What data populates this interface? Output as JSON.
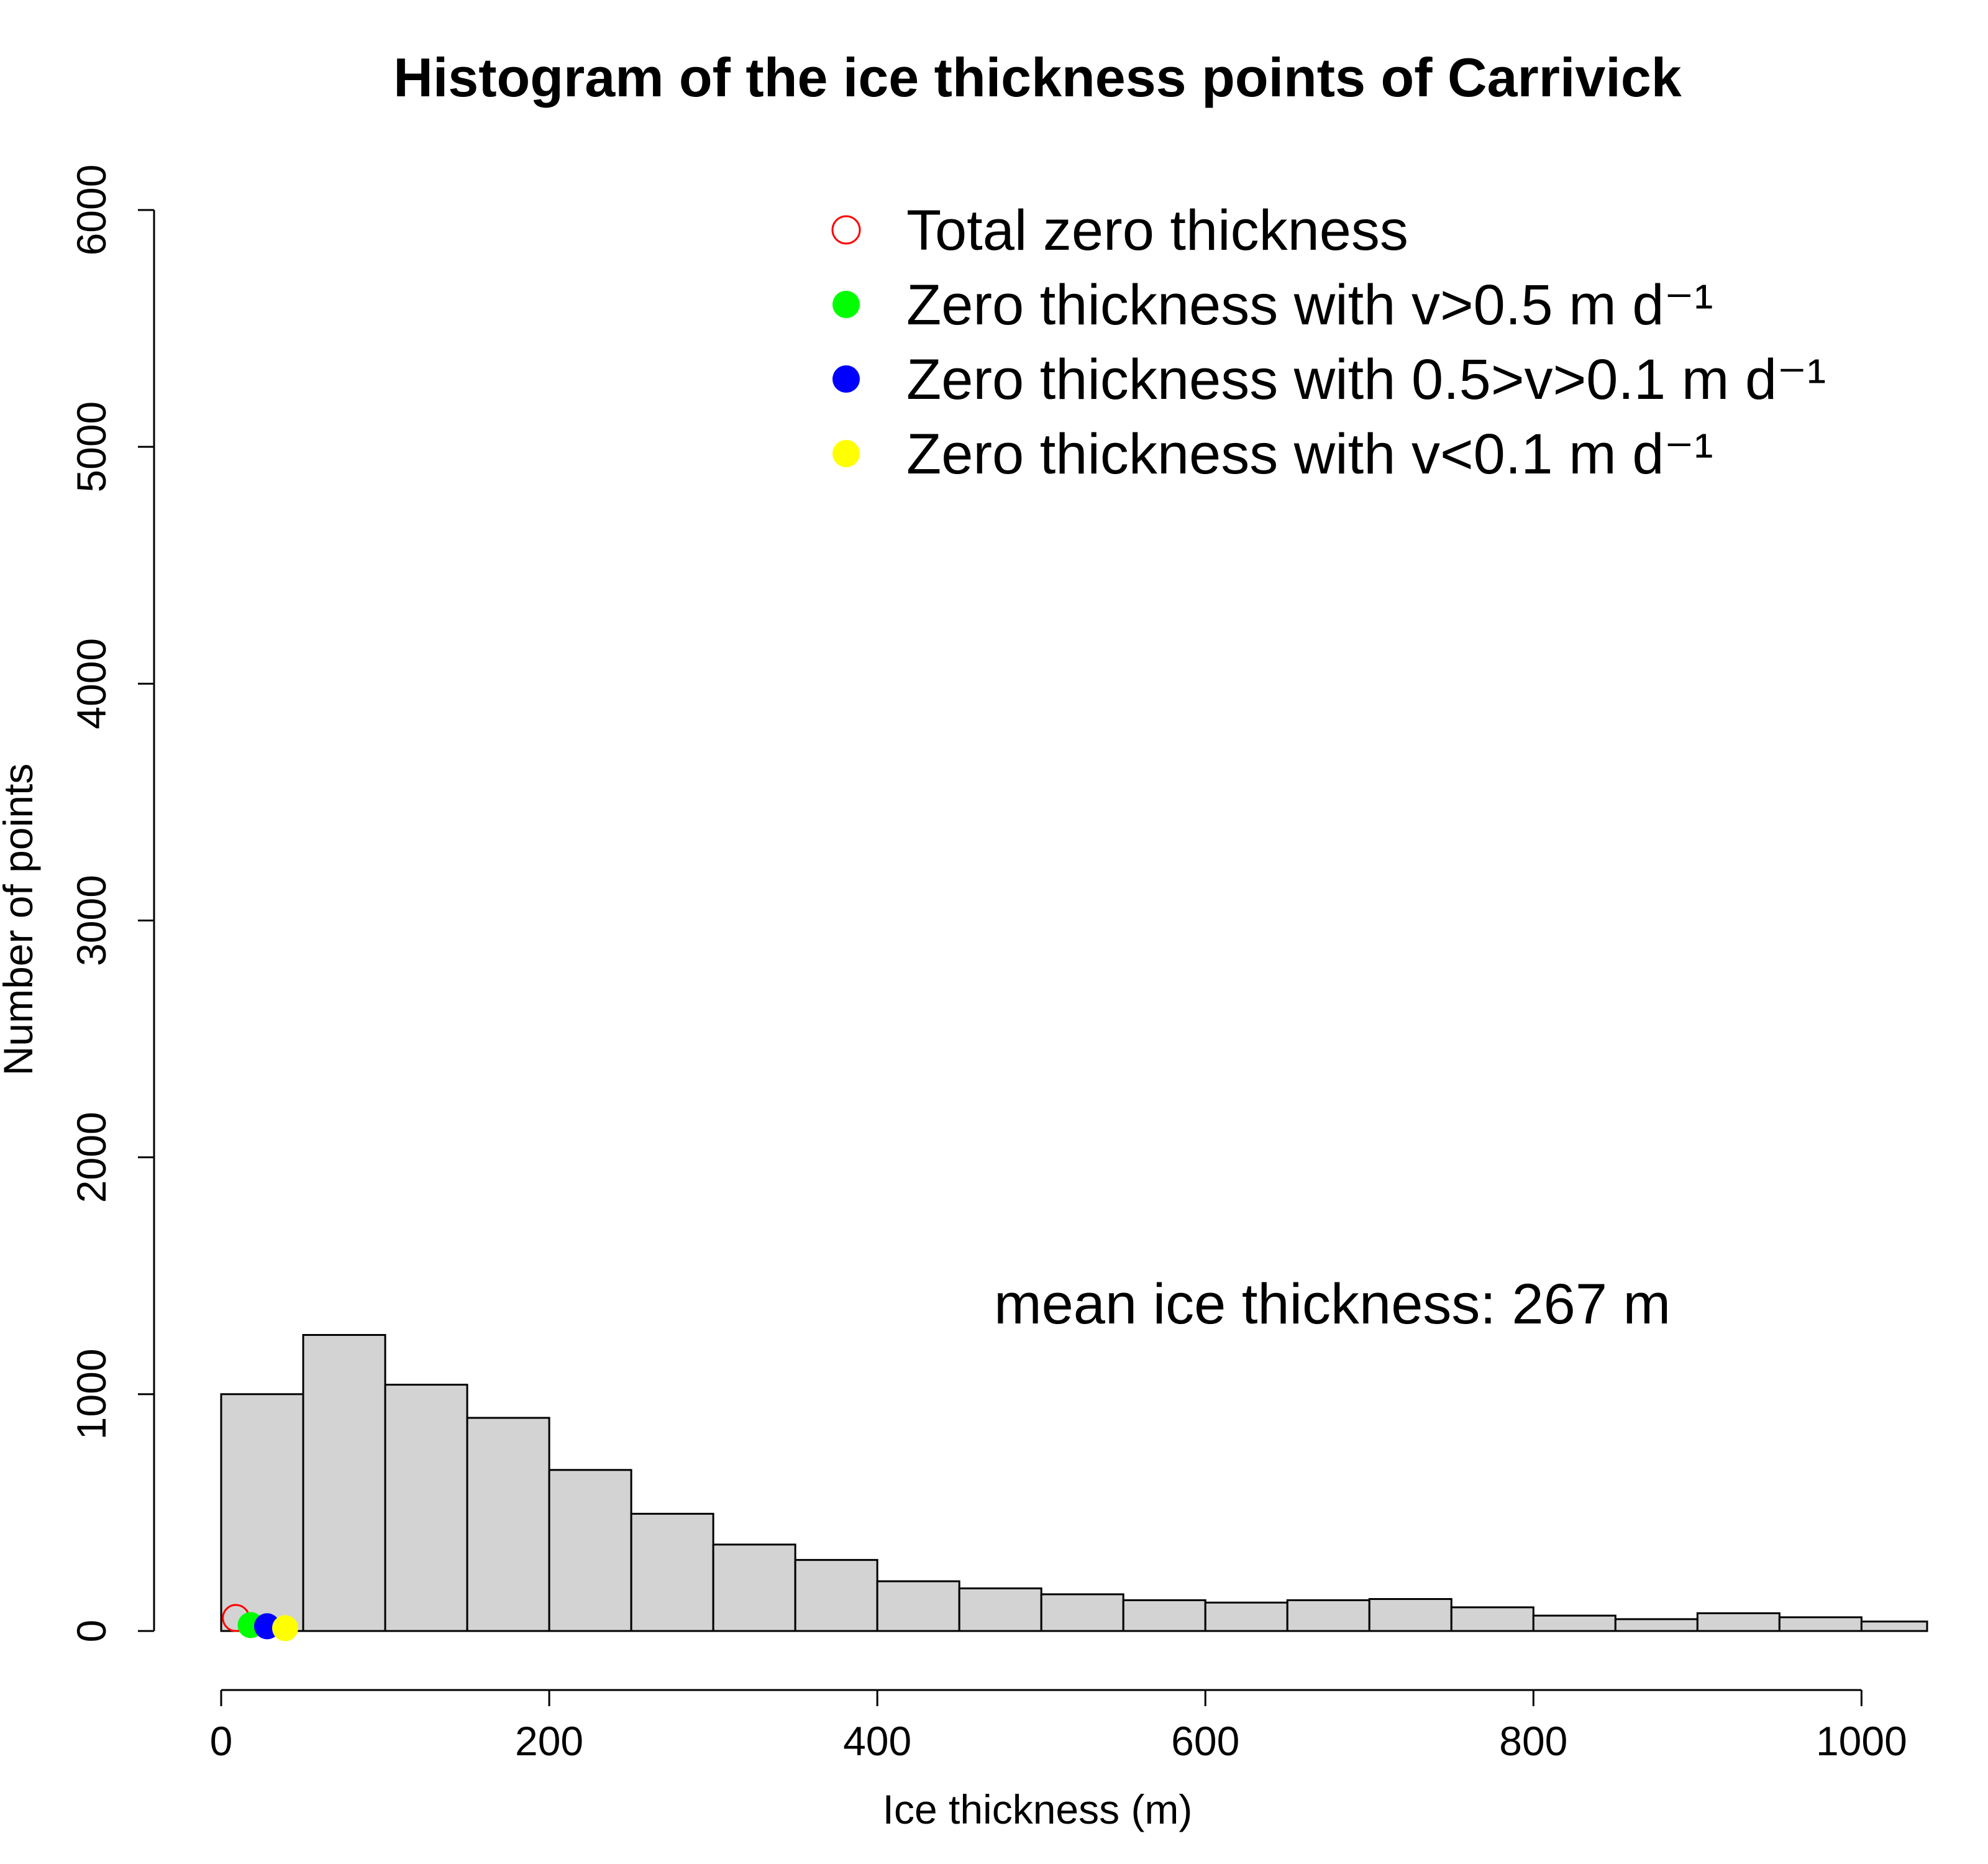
{
  "chart_data": {
    "type": "bar",
    "title": "Histogram of the ice thickness points of Carrivick",
    "xlabel": "Ice thickness (m)",
    "ylabel": "Number of points",
    "xlim": [
      0,
      1040
    ],
    "ylim": [
      0,
      6000
    ],
    "x_ticks": [
      "0",
      "200",
      "400",
      "600",
      "800",
      "1000"
    ],
    "x_tick_values": [
      0,
      200,
      400,
      600,
      800,
      1000
    ],
    "y_ticks": [
      "0",
      "1000",
      "2000",
      "3000",
      "4000",
      "5000",
      "6000"
    ],
    "y_tick_values": [
      0,
      1000,
      2000,
      3000,
      4000,
      5000,
      6000
    ],
    "bin_width": 50,
    "bins": [
      {
        "x0": 0,
        "x1": 50,
        "count": 1000
      },
      {
        "x0": 50,
        "x1": 100,
        "count": 1250
      },
      {
        "x0": 100,
        "x1": 150,
        "count": 1040
      },
      {
        "x0": 150,
        "x1": 200,
        "count": 900
      },
      {
        "x0": 200,
        "x1": 250,
        "count": 680
      },
      {
        "x0": 250,
        "x1": 300,
        "count": 495
      },
      {
        "x0": 300,
        "x1": 350,
        "count": 365
      },
      {
        "x0": 350,
        "x1": 400,
        "count": 300
      },
      {
        "x0": 400,
        "x1": 450,
        "count": 210
      },
      {
        "x0": 450,
        "x1": 500,
        "count": 180
      },
      {
        "x0": 500,
        "x1": 550,
        "count": 155
      },
      {
        "x0": 550,
        "x1": 600,
        "count": 130
      },
      {
        "x0": 600,
        "x1": 650,
        "count": 120
      },
      {
        "x0": 650,
        "x1": 700,
        "count": 130
      },
      {
        "x0": 700,
        "x1": 750,
        "count": 135
      },
      {
        "x0": 750,
        "x1": 800,
        "count": 100
      },
      {
        "x0": 800,
        "x1": 850,
        "count": 65
      },
      {
        "x0": 850,
        "x1": 900,
        "count": 50
      },
      {
        "x0": 900,
        "x1": 950,
        "count": 75
      },
      {
        "x0": 950,
        "x1": 1000,
        "count": 58
      },
      {
        "x0": 1000,
        "x1": 1040,
        "count": 40
      }
    ],
    "bar_color": "#d3d3d3",
    "points": [
      {
        "series": "Total zero thickness",
        "x": 9,
        "y": 55,
        "color": "#ff0000",
        "filled": false
      },
      {
        "series": "Zero thickness with v>0.5 m d⁻¹",
        "x": 18,
        "y": 25,
        "color": "#00ff00",
        "filled": true
      },
      {
        "series": "Zero thickness with 0.5>v>0.1 m d⁻¹",
        "x": 28,
        "y": 20,
        "color": "#0000ff",
        "filled": true
      },
      {
        "series": "Zero thickness with v<0.1 m d⁻¹",
        "x": 39,
        "y": 12,
        "color": "#ffff00",
        "filled": true
      }
    ],
    "legend": {
      "placement": "top-right",
      "entries": [
        {
          "label": "Total zero thickness",
          "color": "#ff0000",
          "filled": false
        },
        {
          "label": "Zero thickness with v>0.5 m d⁻¹",
          "color": "#00ff00",
          "filled": true
        },
        {
          "label": "Zero thickness with 0.5>v>0.1 m d⁻¹",
          "color": "#0000ff",
          "filled": true
        },
        {
          "label": "Zero thickness with v<0.1 m d⁻¹",
          "color": "#ffff00",
          "filled": true
        }
      ]
    },
    "annotation": "mean ice thickness: 267 m",
    "grid": false
  }
}
